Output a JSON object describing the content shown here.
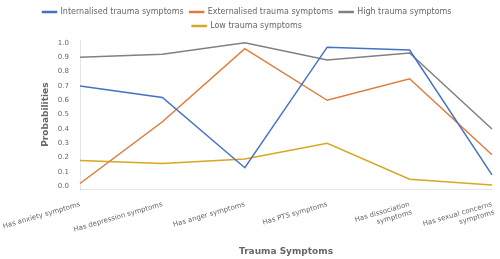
{
  "chart_data": {
    "type": "line",
    "x_label": "Trauma Symptoms",
    "y_label": "Probabilities",
    "categories": [
      "Has anxiety symptoms",
      "Has depression symptoms",
      "Has anger symptoms",
      "Has PTS symptoms",
      "Has dissociation\nsymptoms",
      "Has sexual concerns\nsymptoms"
    ],
    "series": [
      {
        "name": "Internalised trauma symptoms",
        "color": "#4472C4",
        "line_style": "solid",
        "values": [
          0.7,
          0.62,
          0.13,
          0.97,
          0.95,
          0.08
        ]
      },
      {
        "name": "Externalised trauma symptoms",
        "color": "#E07B39",
        "line_style": "solid",
        "values": [
          0.02,
          0.45,
          0.96,
          0.6,
          0.75,
          0.22
        ]
      },
      {
        "name": "High trauma symptoms",
        "color": "#808080",
        "line_style": "solid",
        "values": [
          0.9,
          0.92,
          1.0,
          0.88,
          0.93,
          0.4
        ]
      },
      {
        "name": "Low trauma symptoms",
        "color": "#DAA520",
        "line_style": "solid",
        "values": [
          0.18,
          0.16,
          0.19,
          0.3,
          0.05,
          0.01
        ]
      }
    ],
    "ylim": [
      -0.02,
      1.02
    ],
    "yticks": [
      {
        "value": 0,
        "label": "0.0"
      },
      0.1,
      0.2,
      0.3,
      0.4,
      0.5,
      0.6,
      0.7,
      0.8,
      0.9,
      {
        "value": 1,
        "label": "1.0"
      }
    ],
    "grid": false,
    "legend": "top"
  }
}
